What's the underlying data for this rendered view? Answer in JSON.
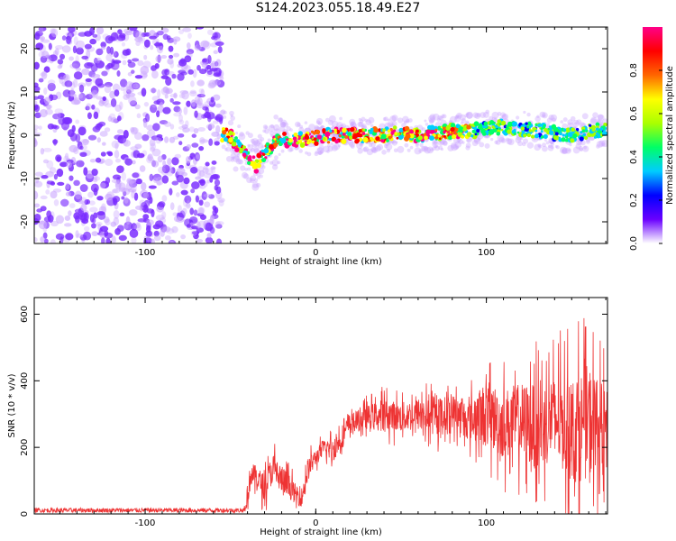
{
  "title": "S124.2023.055.18.49.E27",
  "colors": {
    "snr_line": "#ee3333",
    "scatter_main": "#7a2cff",
    "scatter_light": "#caa6ff",
    "axis": "#000000"
  },
  "chart_data": [
    {
      "type": "heatmap",
      "title": "S124.2023.055.18.49.E27",
      "xlabel": "Height of straight line (km)",
      "ylabel": "Frequency (Hz)",
      "xlim": [
        -165,
        171
      ],
      "ylim": [
        -25,
        25
      ],
      "xticks": [
        -100,
        0,
        100
      ],
      "yticks": [
        -20,
        -10,
        0,
        10,
        20
      ],
      "grid": false,
      "noise_region": {
        "x": [
          -165,
          -55
        ],
        "y": [
          -25,
          25
        ]
      },
      "ridge": {
        "x": [
          -55,
          -50,
          -45,
          -40,
          -35,
          -30,
          -25,
          -20,
          -10,
          0,
          10,
          20,
          30,
          40,
          50,
          60,
          70,
          80,
          90,
          100,
          110,
          120,
          130,
          140,
          150,
          160,
          170
        ],
        "y": [
          0,
          0,
          -3,
          -5,
          -7,
          -4,
          -2,
          -1,
          -1,
          -0.5,
          0,
          0,
          0,
          0,
          0.5,
          0,
          0.5,
          1,
          1,
          1.5,
          2,
          1.5,
          1,
          0.5,
          0,
          1,
          1
        ]
      },
      "colorbar": {
        "label": "Normalized spectral amplitude",
        "range": [
          0,
          1
        ],
        "ticks": [
          "0.0",
          "0.2",
          "0.4",
          "0.6",
          "0.8"
        ],
        "colors": [
          "#ffffff",
          "#6a00ff",
          "#0000ff",
          "#00ccff",
          "#00ff66",
          "#aaff00",
          "#ffff00",
          "#ff6600",
          "#ff0000",
          "#ff0088"
        ]
      }
    },
    {
      "type": "line",
      "xlabel": "Height of straight line (km)",
      "ylabel": "SNR (10 * v/v)",
      "xlim": [
        -165,
        171
      ],
      "ylim": [
        0,
        650
      ],
      "xticks": [
        -100,
        0,
        100
      ],
      "yticks": [
        0,
        200,
        400,
        600
      ],
      "grid": false,
      "series": [
        {
          "x": [
            -165,
            -150,
            -130,
            -110,
            -90,
            -70,
            -50,
            -42,
            -40,
            -38,
            -35,
            -30,
            -25,
            -20,
            -15,
            -12,
            -8,
            -5,
            0,
            5,
            10,
            15,
            20,
            30,
            40,
            50,
            60,
            70,
            80,
            90,
            100,
            110,
            120,
            130,
            140,
            150,
            160,
            171
          ],
          "y": [
            10,
            12,
            11,
            12,
            10,
            12,
            11,
            12,
            60,
            120,
            110,
            80,
            140,
            100,
            80,
            60,
            50,
            130,
            170,
            200,
            190,
            230,
            270,
            290,
            300,
            290,
            300,
            290,
            310,
            280,
            300,
            270,
            280,
            260,
            290,
            250,
            280,
            250
          ],
          "envelope": [
            10,
            12,
            12,
            12,
            12,
            12,
            12,
            30,
            140,
            190,
            180,
            160,
            230,
            200,
            150,
            120,
            110,
            200,
            220,
            250,
            260,
            300,
            330,
            360,
            390,
            380,
            400,
            400,
            410,
            400,
            500,
            480,
            510,
            520,
            550,
            570,
            620,
            480
          ]
        }
      ]
    }
  ]
}
